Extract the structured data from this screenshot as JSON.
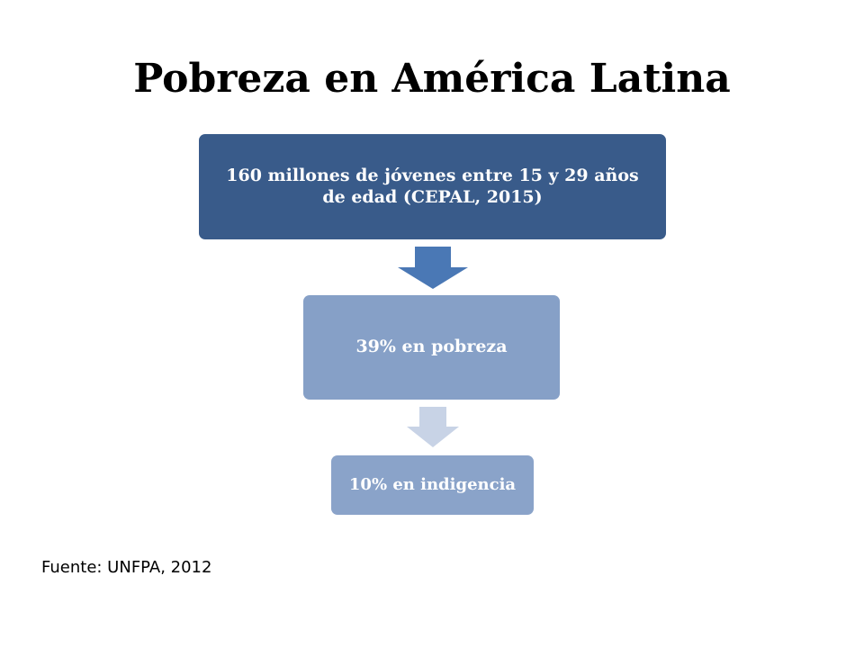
{
  "slide": {
    "title": "Pobreza en América Latina",
    "source": "Fuente: UNFPA, 2012"
  },
  "flow": {
    "steps": [
      {
        "label": "160 millones de jóvenes entre 15 y 29 años de edad (CEPAL, 2015)",
        "color": "#395B8A"
      },
      {
        "label": "39% en pobreza",
        "color": "#86A0C7"
      },
      {
        "label": "10% en indigencia",
        "color": "#8AA3C9"
      }
    ],
    "arrows": [
      {
        "color": "#4A78B5"
      },
      {
        "color": "#C8D3E6"
      }
    ]
  }
}
